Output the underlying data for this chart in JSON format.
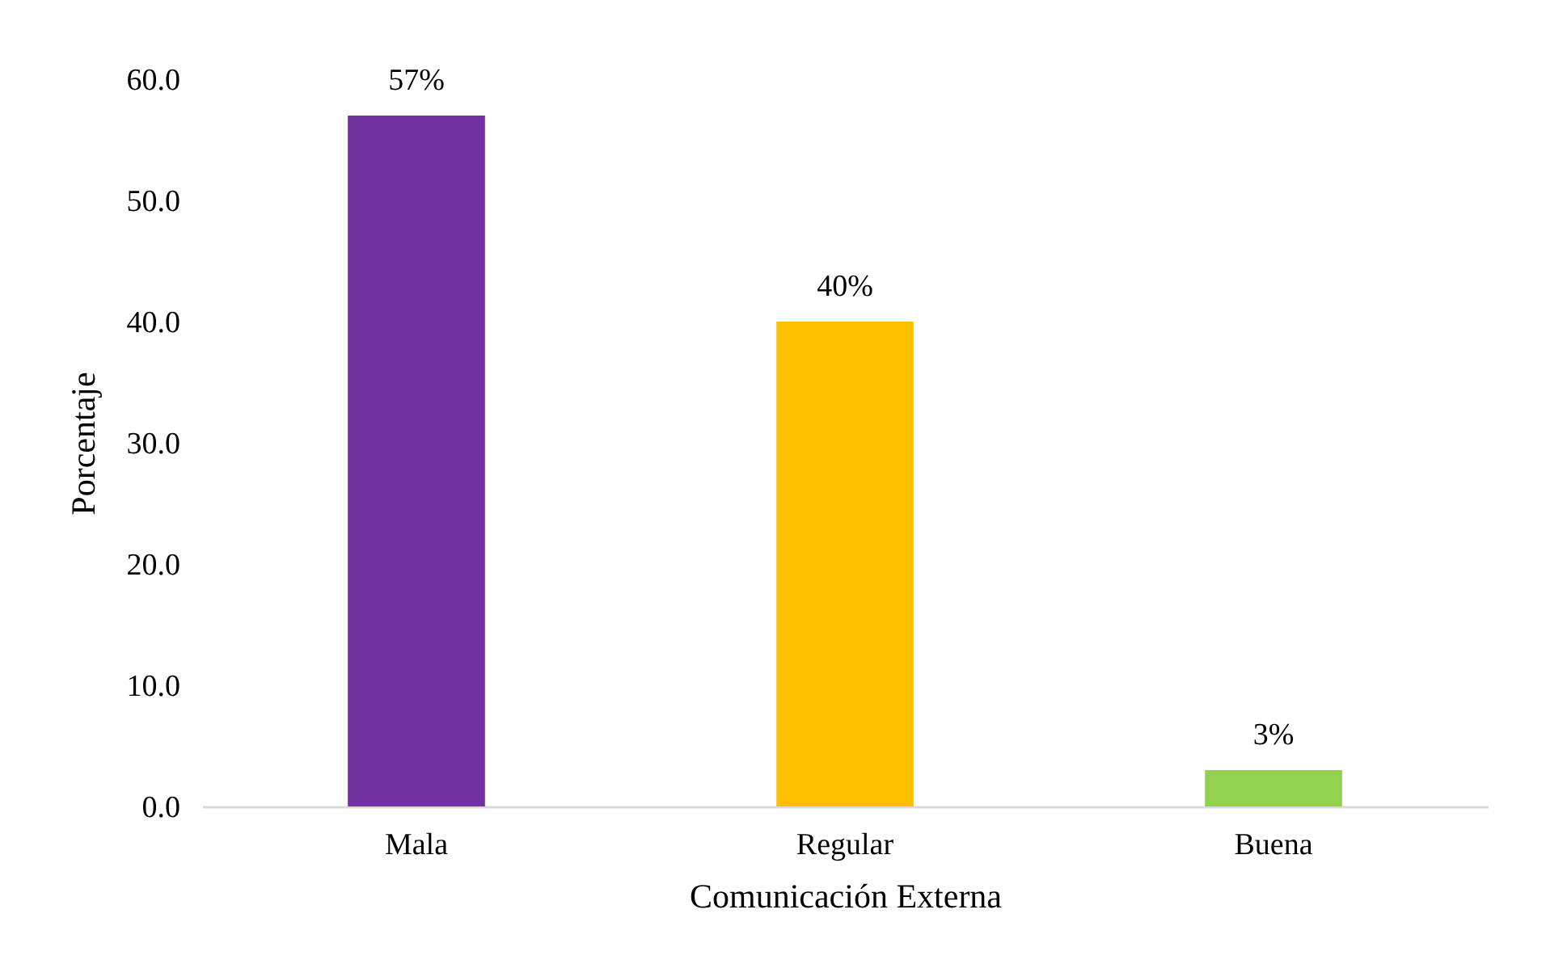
{
  "chart_data": {
    "type": "bar",
    "xlabel": "Comunicación Externa",
    "ylabel": "Porcentaje",
    "categories": [
      "Mala",
      "Regular",
      "Buena"
    ],
    "values": [
      57,
      40,
      3
    ],
    "colors": [
      "#7030a0",
      "#ffc000",
      "#92d050"
    ],
    "value_labels": [
      "57%",
      "40%",
      "3%"
    ],
    "ylim": [
      0,
      60
    ],
    "yticks": [
      {
        "value": 0,
        "label": "0.0"
      },
      {
        "value": 10,
        "label": "10.0"
      },
      {
        "value": 20,
        "label": "20.0"
      },
      {
        "value": 30,
        "label": "30.0"
      },
      {
        "value": 40,
        "label": "40.0"
      },
      {
        "value": 50,
        "label": "50.0"
      },
      {
        "value": 60,
        "label": "60.0"
      }
    ],
    "grid": false,
    "legend": false
  }
}
